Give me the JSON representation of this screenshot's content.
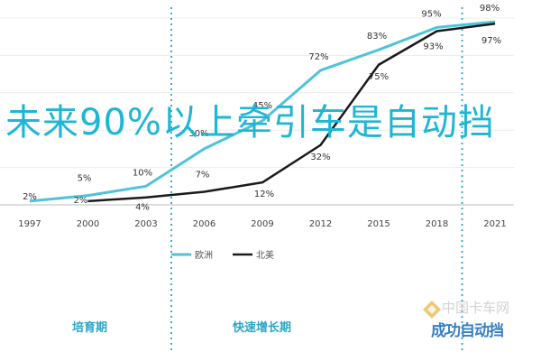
{
  "overlay_title": "未来90%以上牵引车是自动挡",
  "phases": {
    "first": "培育期",
    "second": "快速增长期"
  },
  "watermark": {
    "site": "中国卡车网",
    "brand": "成功自动挡"
  },
  "colors": {
    "europe": "#4fc3d9",
    "north_america": "#1a1a1a",
    "phase_divider": "#3aaecf",
    "title": "#1fb6d4"
  },
  "chart_data": {
    "type": "line",
    "x": [
      "1997",
      "2000",
      "2003",
      "2006",
      "2009",
      "2012",
      "2015",
      "2018",
      "2021"
    ],
    "series": [
      {
        "name": "欧洲",
        "values": [
          2,
          5,
          10,
          30,
          45,
          72,
          83,
          95,
          98
        ],
        "labels": [
          "2%",
          "5%",
          "10%",
          "30%",
          "45%",
          "72%",
          "83%",
          "95%",
          "98%"
        ]
      },
      {
        "name": "北美",
        "values": [
          null,
          2,
          4,
          7,
          12,
          32,
          75,
          93,
          97
        ],
        "labels": [
          "",
          "2%",
          "4%",
          "7%",
          "12%",
          "32%",
          "75%",
          "93%",
          "97%"
        ]
      }
    ],
    "ylim": [
      0,
      100
    ],
    "grid": true,
    "legend": "bottom-center",
    "phase_dividers": [
      "2003",
      "2018"
    ]
  }
}
